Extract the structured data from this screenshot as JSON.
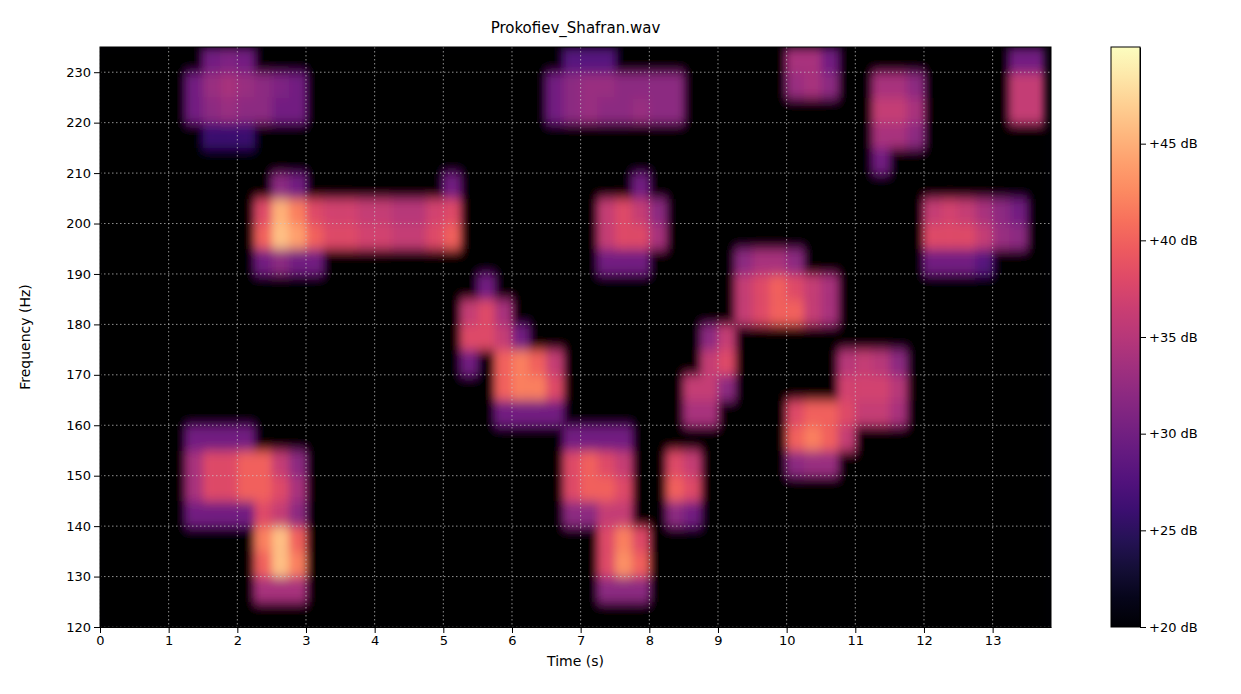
{
  "chart_data": {
    "type": "heatmap",
    "title": "Prokofiev_Shafran.wav",
    "x_label": "Time (s)",
    "y_label": "Frequency (Hz)",
    "x": [
      0,
      0.25,
      0.5,
      0.75,
      1,
      1.25,
      1.5,
      1.75,
      2,
      2.25,
      2.5,
      2.75,
      3,
      3.25,
      3.5,
      3.75,
      4,
      4.25,
      4.5,
      4.75,
      5,
      5.25,
      5.5,
      5.75,
      6,
      6.25,
      6.5,
      6.75,
      7,
      7.25,
      7.5,
      7.75,
      8,
      8.25,
      8.5,
      8.75,
      9,
      9.25,
      9.5,
      9.75,
      10,
      10.25,
      10.5,
      10.75,
      11,
      11.25,
      11.5,
      11.75,
      12,
      12.25,
      12.5,
      12.75,
      13,
      13.25,
      13.5,
      13.75
    ],
    "y": [
      120,
      125,
      130,
      135,
      140,
      145,
      150,
      155,
      160,
      165,
      170,
      175,
      180,
      185,
      190,
      195,
      200,
      205,
      210,
      215,
      220,
      225,
      230,
      235
    ],
    "z": [
      [
        20,
        20,
        20,
        20,
        20,
        20,
        20,
        20,
        20,
        20,
        20,
        20,
        20,
        20,
        20,
        20,
        20,
        20,
        20,
        20,
        20,
        20,
        20,
        20,
        20,
        20,
        20,
        20,
        20,
        20,
        20,
        20,
        20,
        20,
        20,
        20,
        20,
        20,
        20,
        20,
        20,
        20,
        20,
        20,
        20,
        20,
        20,
        20,
        20,
        20,
        20,
        20,
        20,
        20,
        20
      ],
      [
        20,
        20,
        20,
        20,
        20,
        20,
        20,
        20,
        20,
        34,
        34,
        34,
        20,
        20,
        20,
        20,
        20,
        20,
        20,
        20,
        20,
        20,
        20,
        20,
        20,
        20,
        20,
        20,
        20,
        32,
        32,
        32,
        20,
        20,
        20,
        20,
        20,
        20,
        20,
        20,
        20,
        20,
        20,
        20,
        20,
        20,
        20,
        20,
        20,
        20,
        20,
        20,
        20,
        20,
        20
      ],
      [
        20,
        20,
        20,
        20,
        20,
        20,
        20,
        20,
        20,
        40,
        46,
        42,
        20,
        20,
        20,
        20,
        20,
        20,
        20,
        20,
        20,
        20,
        20,
        20,
        20,
        20,
        20,
        20,
        20,
        38,
        43,
        40,
        20,
        20,
        20,
        20,
        20,
        20,
        20,
        20,
        20,
        20,
        20,
        20,
        20,
        20,
        20,
        20,
        20,
        20,
        20,
        20,
        20,
        20,
        20
      ],
      [
        20,
        20,
        20,
        20,
        20,
        20,
        20,
        20,
        20,
        42,
        46,
        40,
        20,
        20,
        20,
        20,
        20,
        20,
        20,
        20,
        20,
        20,
        20,
        20,
        20,
        20,
        20,
        20,
        20,
        38,
        42,
        38,
        20,
        20,
        20,
        20,
        20,
        20,
        20,
        20,
        20,
        20,
        20,
        20,
        20,
        20,
        20,
        20,
        20,
        20,
        20,
        20,
        20,
        20,
        20
      ],
      [
        20,
        20,
        20,
        20,
        20,
        30,
        30,
        30,
        30,
        38,
        36,
        32,
        20,
        20,
        20,
        20,
        20,
        20,
        20,
        20,
        20,
        20,
        20,
        20,
        20,
        20,
        20,
        32,
        32,
        36,
        36,
        20,
        20,
        32,
        30,
        20,
        20,
        20,
        20,
        20,
        20,
        20,
        20,
        20,
        20,
        20,
        20,
        20,
        20,
        20,
        20,
        20,
        20,
        20,
        20
      ],
      [
        20,
        20,
        20,
        20,
        20,
        34,
        38,
        38,
        40,
        40,
        38,
        34,
        20,
        20,
        20,
        20,
        20,
        20,
        20,
        20,
        20,
        20,
        20,
        20,
        20,
        20,
        20,
        38,
        40,
        40,
        38,
        20,
        20,
        40,
        38,
        20,
        20,
        20,
        20,
        20,
        20,
        20,
        20,
        20,
        20,
        20,
        20,
        20,
        20,
        20,
        20,
        20,
        20,
        20,
        20
      ],
      [
        20,
        20,
        20,
        20,
        20,
        34,
        38,
        38,
        40,
        40,
        36,
        32,
        20,
        20,
        20,
        20,
        20,
        20,
        20,
        20,
        20,
        20,
        20,
        20,
        20,
        20,
        20,
        38,
        40,
        38,
        36,
        20,
        20,
        38,
        36,
        20,
        20,
        20,
        20,
        20,
        32,
        33,
        33,
        20,
        20,
        20,
        20,
        20,
        20,
        20,
        20,
        20,
        20,
        20,
        20
      ],
      [
        20,
        20,
        20,
        20,
        20,
        30,
        30,
        30,
        30,
        20,
        20,
        20,
        20,
        20,
        20,
        20,
        20,
        20,
        20,
        20,
        20,
        20,
        20,
        20,
        20,
        20,
        20,
        30,
        30,
        30,
        30,
        20,
        20,
        20,
        20,
        20,
        20,
        20,
        20,
        20,
        40,
        42,
        40,
        36,
        20,
        20,
        20,
        20,
        20,
        20,
        20,
        20,
        20,
        20,
        20
      ],
      [
        20,
        20,
        20,
        20,
        20,
        20,
        20,
        20,
        20,
        20,
        20,
        20,
        20,
        20,
        20,
        20,
        20,
        20,
        20,
        20,
        20,
        20,
        20,
        30,
        30,
        30,
        30,
        20,
        20,
        20,
        20,
        20,
        20,
        20,
        34,
        34,
        20,
        20,
        20,
        20,
        38,
        40,
        40,
        38,
        36,
        36,
        34,
        20,
        20,
        20,
        20,
        20,
        20,
        20,
        20
      ],
      [
        20,
        20,
        20,
        20,
        20,
        20,
        20,
        20,
        20,
        20,
        20,
        20,
        20,
        20,
        20,
        20,
        20,
        20,
        20,
        20,
        20,
        20,
        20,
        40,
        42,
        42,
        38,
        20,
        20,
        20,
        20,
        20,
        20,
        20,
        36,
        36,
        32,
        20,
        20,
        20,
        20,
        20,
        20,
        37,
        37,
        37,
        35,
        20,
        20,
        20,
        20,
        20,
        20,
        20,
        20
      ],
      [
        20,
        20,
        20,
        20,
        20,
        20,
        20,
        20,
        20,
        20,
        20,
        20,
        20,
        20,
        20,
        20,
        20,
        20,
        20,
        20,
        20,
        30,
        20,
        40,
        42,
        40,
        36,
        20,
        20,
        20,
        20,
        20,
        20,
        20,
        20,
        36,
        38,
        20,
        20,
        20,
        20,
        20,
        20,
        35,
        36,
        35,
        32,
        20,
        20,
        20,
        20,
        20,
        20,
        20,
        20
      ],
      [
        20,
        20,
        20,
        20,
        20,
        20,
        20,
        20,
        20,
        20,
        20,
        20,
        20,
        20,
        20,
        20,
        20,
        20,
        20,
        20,
        20,
        38,
        38,
        36,
        30,
        20,
        20,
        20,
        20,
        20,
        20,
        20,
        20,
        20,
        20,
        32,
        36,
        20,
        20,
        20,
        20,
        20,
        20,
        20,
        20,
        20,
        20,
        20,
        20,
        20,
        20,
        20,
        20,
        20,
        20
      ],
      [
        20,
        20,
        20,
        20,
        20,
        20,
        20,
        20,
        20,
        20,
        20,
        20,
        20,
        20,
        20,
        20,
        20,
        20,
        20,
        20,
        20,
        36,
        38,
        34,
        20,
        20,
        20,
        20,
        20,
        20,
        20,
        20,
        20,
        20,
        20,
        20,
        20,
        36,
        38,
        40,
        40,
        36,
        34,
        20,
        20,
        20,
        20,
        20,
        20,
        20,
        20,
        20,
        20,
        20,
        20
      ],
      [
        20,
        20,
        20,
        20,
        20,
        20,
        20,
        20,
        20,
        20,
        20,
        20,
        20,
        20,
        20,
        20,
        20,
        20,
        20,
        20,
        20,
        20,
        30,
        20,
        20,
        20,
        20,
        20,
        20,
        20,
        20,
        20,
        20,
        20,
        20,
        20,
        20,
        36,
        38,
        40,
        38,
        36,
        34,
        20,
        20,
        20,
        20,
        20,
        20,
        20,
        20,
        20,
        20,
        20,
        20
      ],
      [
        20,
        20,
        20,
        20,
        20,
        20,
        20,
        20,
        20,
        30,
        32,
        30,
        30,
        20,
        20,
        20,
        20,
        20,
        20,
        20,
        20,
        20,
        20,
        20,
        20,
        20,
        20,
        20,
        20,
        30,
        30,
        30,
        20,
        20,
        20,
        20,
        20,
        32,
        34,
        34,
        32,
        20,
        20,
        20,
        20,
        20,
        20,
        20,
        30,
        30,
        30,
        28,
        20,
        20,
        20
      ],
      [
        20,
        20,
        20,
        20,
        20,
        20,
        20,
        20,
        20,
        40,
        46,
        44,
        40,
        38,
        38,
        37,
        37,
        36,
        36,
        38,
        40,
        20,
        20,
        20,
        20,
        20,
        20,
        20,
        20,
        36,
        38,
        38,
        34,
        20,
        20,
        20,
        20,
        20,
        20,
        20,
        20,
        20,
        20,
        20,
        20,
        20,
        20,
        20,
        38,
        38,
        38,
        36,
        33,
        32,
        20
      ],
      [
        20,
        20,
        20,
        20,
        20,
        20,
        20,
        20,
        20,
        38,
        45,
        42,
        38,
        37,
        37,
        36,
        36,
        35,
        35,
        37,
        38,
        20,
        20,
        20,
        20,
        20,
        20,
        20,
        20,
        36,
        38,
        36,
        32,
        20,
        20,
        20,
        20,
        20,
        20,
        20,
        20,
        20,
        20,
        20,
        20,
        20,
        20,
        20,
        36,
        37,
        36,
        34,
        32,
        30,
        20
      ],
      [
        20,
        20,
        20,
        20,
        20,
        20,
        20,
        20,
        20,
        20,
        32,
        30,
        20,
        20,
        20,
        20,
        20,
        20,
        20,
        20,
        30,
        20,
        20,
        20,
        20,
        20,
        20,
        20,
        20,
        20,
        20,
        30,
        20,
        20,
        20,
        20,
        20,
        20,
        20,
        20,
        20,
        20,
        20,
        20,
        20,
        20,
        20,
        20,
        20,
        20,
        20,
        20,
        20,
        20,
        20
      ],
      [
        20,
        20,
        20,
        20,
        20,
        20,
        20,
        20,
        20,
        20,
        20,
        20,
        20,
        20,
        20,
        20,
        20,
        20,
        20,
        20,
        20,
        20,
        20,
        20,
        20,
        20,
        20,
        20,
        20,
        20,
        20,
        20,
        20,
        20,
        20,
        20,
        20,
        20,
        20,
        20,
        20,
        20,
        20,
        20,
        20,
        30,
        20,
        20,
        20,
        20,
        20,
        20,
        20,
        20,
        20
      ],
      [
        20,
        20,
        20,
        20,
        20,
        20,
        26,
        26,
        26,
        20,
        20,
        20,
        20,
        20,
        20,
        20,
        20,
        20,
        20,
        20,
        20,
        20,
        20,
        20,
        20,
        20,
        20,
        20,
        20,
        20,
        20,
        20,
        20,
        20,
        20,
        20,
        20,
        20,
        20,
        20,
        20,
        20,
        20,
        20,
        20,
        34,
        34,
        32,
        20,
        20,
        20,
        20,
        20,
        20,
        20
      ],
      [
        20,
        20,
        20,
        20,
        20,
        30,
        32,
        33,
        32,
        32,
        30,
        30,
        20,
        20,
        20,
        20,
        20,
        20,
        20,
        20,
        20,
        20,
        20,
        20,
        20,
        20,
        30,
        32,
        33,
        32,
        32,
        33,
        32,
        32,
        20,
        20,
        20,
        20,
        20,
        20,
        20,
        20,
        20,
        20,
        20,
        36,
        36,
        34,
        20,
        20,
        20,
        20,
        20,
        36,
        36
      ],
      [
        20,
        20,
        20,
        20,
        20,
        30,
        33,
        34,
        33,
        32,
        31,
        30,
        20,
        20,
        20,
        20,
        20,
        20,
        20,
        20,
        20,
        20,
        20,
        20,
        20,
        20,
        30,
        32,
        33,
        33,
        32,
        32,
        32,
        32,
        20,
        20,
        20,
        20,
        20,
        20,
        33,
        34,
        32,
        20,
        20,
        34,
        34,
        32,
        20,
        20,
        20,
        20,
        20,
        36,
        36
      ],
      [
        20,
        20,
        20,
        20,
        20,
        20,
        30,
        31,
        30,
        20,
        20,
        20,
        20,
        20,
        20,
        20,
        20,
        20,
        20,
        20,
        20,
        20,
        20,
        20,
        20,
        20,
        20,
        28,
        28,
        28,
        20,
        20,
        20,
        20,
        20,
        20,
        20,
        20,
        20,
        20,
        34,
        34,
        30,
        20,
        20,
        20,
        20,
        20,
        20,
        20,
        20,
        20,
        20,
        30,
        30
      ]
    ],
    "xlim": [
      0,
      13.85
    ],
    "ylim": [
      120,
      235
    ],
    "xticks": [
      0,
      1,
      2,
      3,
      4,
      5,
      6,
      7,
      8,
      9,
      10,
      11,
      12,
      13
    ],
    "yticks": [
      120,
      130,
      140,
      150,
      160,
      170,
      180,
      190,
      200,
      210,
      220,
      230
    ],
    "grid": true,
    "colorbar": {
      "range": [
        20,
        50
      ],
      "ticks": [
        {
          "value": 20,
          "label": "+20 dB"
        },
        {
          "value": 25,
          "label": "+25 dB"
        },
        {
          "value": 30,
          "label": "+30 dB"
        },
        {
          "value": 35,
          "label": "+35 dB"
        },
        {
          "value": 40,
          "label": "+40 dB"
        },
        {
          "value": 45,
          "label": "+45 dB"
        }
      ]
    }
  }
}
